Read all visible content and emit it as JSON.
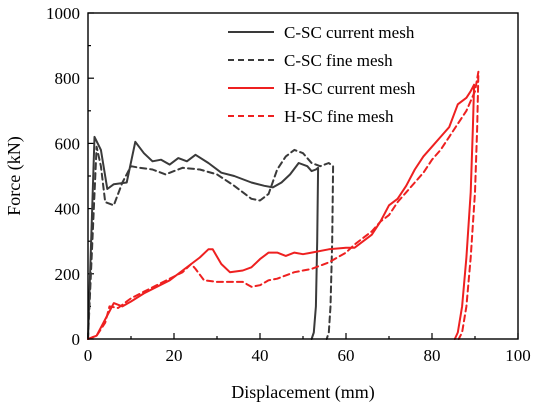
{
  "chart_data": {
    "type": "line",
    "title": "",
    "xlabel": "Displacement (mm)",
    "ylabel": "Force (kN)",
    "xlim": [
      0,
      100
    ],
    "ylim": [
      0,
      1000
    ],
    "xticks": [
      0,
      20,
      40,
      60,
      80,
      100
    ],
    "yticks": [
      0,
      200,
      400,
      600,
      800,
      1000
    ],
    "grid": false,
    "legend": "top-right",
    "series": [
      {
        "name": "C-SC current mesh",
        "color": "#3a3a3a",
        "dash": "solid",
        "x": [
          0,
          1.5,
          3,
          4.5,
          6,
          9,
          11,
          13,
          15,
          17,
          19,
          21,
          23,
          25,
          28,
          31,
          34,
          38,
          41,
          43,
          45,
          47,
          49,
          51,
          52,
          53,
          53.5,
          53.3,
          53,
          52.5,
          52
        ],
        "y": [
          0,
          620,
          580,
          460,
          475,
          480,
          605,
          570,
          545,
          550,
          535,
          555,
          545,
          565,
          540,
          510,
          500,
          480,
          470,
          465,
          480,
          505,
          540,
          530,
          515,
          520,
          525,
          300,
          100,
          20,
          0
        ]
      },
      {
        "name": "C-SC fine mesh",
        "color": "#3a3a3a",
        "dash": "dashed",
        "x": [
          0,
          2,
          3,
          4,
          6,
          8,
          10,
          12,
          15,
          18,
          22,
          26,
          30,
          34,
          38,
          40,
          42,
          44,
          46,
          48,
          50,
          52,
          54,
          56,
          57,
          56.8,
          56.4,
          56,
          55.5
        ],
        "y": [
          0,
          590,
          530,
          420,
          410,
          480,
          530,
          525,
          520,
          505,
          525,
          520,
          505,
          470,
          430,
          425,
          445,
          520,
          560,
          580,
          570,
          540,
          530,
          540,
          530,
          300,
          100,
          20,
          0
        ]
      },
      {
        "name": "H-SC current mesh",
        "color": "#ee2020",
        "dash": "solid",
        "x": [
          0,
          2,
          4,
          6,
          8,
          10,
          13,
          16,
          19,
          22,
          24,
          26,
          28,
          29,
          31,
          33,
          36,
          38,
          40,
          42,
          44,
          46,
          48,
          50,
          52,
          56,
          60,
          62,
          64,
          66,
          68,
          70,
          72,
          74,
          76,
          78,
          80,
          82,
          84,
          86,
          88,
          89,
          89.8,
          89.5,
          89,
          88,
          87,
          86,
          85.3
        ],
        "y": [
          0,
          10,
          60,
          110,
          100,
          115,
          140,
          160,
          180,
          210,
          230,
          250,
          275,
          275,
          230,
          205,
          210,
          220,
          245,
          265,
          265,
          255,
          265,
          260,
          265,
          275,
          280,
          280,
          300,
          320,
          360,
          410,
          430,
          470,
          520,
          560,
          590,
          620,
          650,
          720,
          740,
          760,
          780,
          650,
          450,
          250,
          100,
          20,
          0
        ]
      },
      {
        "name": "H-SC fine mesh",
        "color": "#ee2020",
        "dash": "dashed",
        "x": [
          0,
          2,
          4,
          5,
          7,
          10,
          13,
          16,
          19,
          22,
          24,
          25,
          27,
          30,
          33,
          36,
          38,
          40,
          42,
          44,
          46,
          48,
          50,
          52,
          56,
          60,
          62,
          64,
          66,
          68,
          70,
          72,
          74,
          76,
          78,
          80,
          82,
          84,
          86,
          88,
          90,
          90.8,
          90.5,
          90,
          89,
          88,
          87,
          86.2
        ],
        "y": [
          0,
          10,
          50,
          100,
          95,
          125,
          145,
          165,
          185,
          205,
          230,
          215,
          180,
          175,
          175,
          175,
          160,
          165,
          180,
          185,
          195,
          205,
          210,
          215,
          235,
          265,
          290,
          310,
          330,
          360,
          380,
          420,
          450,
          480,
          510,
          550,
          580,
          620,
          660,
          700,
          760,
          820,
          650,
          450,
          250,
          100,
          20,
          0
        ]
      }
    ]
  }
}
